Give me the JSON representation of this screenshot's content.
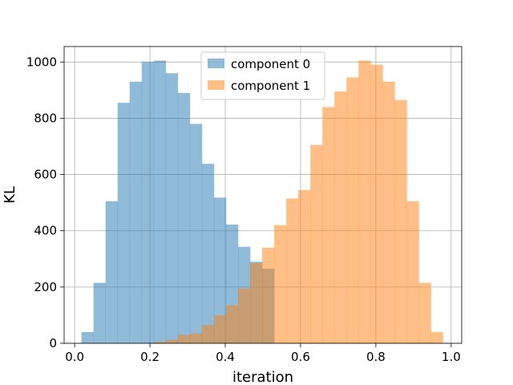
{
  "chart_data": {
    "type": "histogram",
    "title": "",
    "xlabel": "iteration",
    "ylabel": "KL",
    "xlim": [
      -0.028,
      1.028
    ],
    "ylim": [
      0,
      1055
    ],
    "xticks": [
      0.0,
      0.2,
      0.4,
      0.6,
      0.8,
      1.0
    ],
    "xtick_labels": [
      "0.0",
      "0.2",
      "0.4",
      "0.6",
      "0.8",
      "1.0"
    ],
    "yticks": [
      0,
      200,
      400,
      600,
      800,
      1000
    ],
    "ytick_labels": [
      "0",
      "200",
      "400",
      "600",
      "800",
      "1000"
    ],
    "grid": true,
    "legend_position": "top-center",
    "bin_width": 0.032,
    "series": [
      {
        "name": "component 0",
        "color": "#1f77b4",
        "opacity": 0.5,
        "bin_starts": [
          0.018,
          0.05,
          0.082,
          0.114,
          0.146,
          0.178,
          0.21,
          0.242,
          0.274,
          0.306,
          0.338,
          0.37,
          0.402,
          0.434,
          0.466,
          0.498
        ],
        "counts": [
          40,
          215,
          505,
          855,
          930,
          1000,
          1005,
          960,
          890,
          780,
          638,
          518,
          422,
          343,
          290,
          265
        ]
      },
      {
        "name": "component 1",
        "color": "#ff7f0e",
        "opacity": 0.5,
        "bin_starts": [
          0.21,
          0.242,
          0.274,
          0.306,
          0.338,
          0.37,
          0.402,
          0.434,
          0.466,
          0.498,
          0.53,
          0.562,
          0.594,
          0.626,
          0.658,
          0.69,
          0.722,
          0.754,
          0.786,
          0.818,
          0.85,
          0.882,
          0.914,
          0.946
        ],
        "counts": [
          5,
          12,
          30,
          35,
          65,
          100,
          135,
          195,
          285,
          340,
          420,
          515,
          545,
          705,
          840,
          895,
          945,
          1005,
          990,
          930,
          865,
          505,
          215,
          40
        ]
      }
    ]
  }
}
